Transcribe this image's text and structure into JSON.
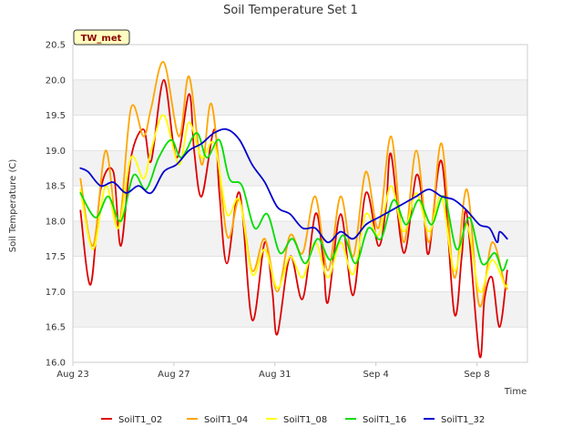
{
  "chart_data": {
    "type": "line",
    "title": "Soil Temperature Set 1",
    "xlabel": "Time",
    "ylabel": "Soil Temperature (C)",
    "tag_label": "TW_met",
    "x_start": "Aug 23",
    "x_unit": "days since Aug 23",
    "xlim": [
      0,
      18
    ],
    "ylim": [
      16.0,
      20.5
    ],
    "x_ticks": [
      {
        "x": 0,
        "label": "Aug 23"
      },
      {
        "x": 4,
        "label": "Aug 27"
      },
      {
        "x": 8,
        "label": "Aug 31"
      },
      {
        "x": 12,
        "label": "Sep 4"
      },
      {
        "x": 16,
        "label": "Sep 8"
      }
    ],
    "y_ticks": [
      {
        "y": 16.0,
        "label": "16.0"
      },
      {
        "y": 16.5,
        "label": "16.5"
      },
      {
        "y": 17.0,
        "label": "17.0"
      },
      {
        "y": 17.5,
        "label": "17.5"
      },
      {
        "y": 18.0,
        "label": "18.0"
      },
      {
        "y": 18.5,
        "label": "18.5"
      },
      {
        "y": 19.0,
        "label": "19.0"
      },
      {
        "y": 19.5,
        "label": "19.5"
      },
      {
        "y": 20.0,
        "label": "20.0"
      },
      {
        "y": 20.5,
        "label": "20.5"
      }
    ],
    "grid": true,
    "legend_position": "bottom",
    "series": [
      {
        "name": "SoilT1_02",
        "color": "#dd0000",
        "x": [
          0.3,
          0.7,
          1.1,
          1.6,
          1.9,
          2.3,
          2.8,
          3.1,
          3.6,
          4.1,
          4.6,
          4.8,
          5.1,
          5.6,
          5.8,
          6.1,
          6.6,
          7.1,
          7.6,
          7.9,
          8.1,
          8.6,
          9.1,
          9.6,
          9.9,
          10.1,
          10.6,
          11.1,
          11.6,
          12.1,
          12.4,
          12.6,
          13.1,
          13.6,
          13.9,
          14.1,
          14.6,
          15.1,
          15.4,
          15.6,
          16.1,
          16.3,
          16.6,
          16.9,
          17.2
        ],
        "y": [
          18.15,
          17.1,
          18.45,
          18.7,
          17.65,
          18.9,
          19.3,
          18.85,
          20.0,
          18.9,
          19.8,
          19.0,
          18.35,
          19.3,
          18.4,
          17.4,
          18.4,
          16.6,
          17.7,
          17.0,
          16.4,
          17.5,
          16.9,
          18.1,
          17.5,
          16.85,
          18.1,
          16.95,
          18.4,
          17.65,
          18.2,
          18.95,
          17.55,
          18.65,
          18.1,
          17.55,
          18.85,
          16.7,
          17.5,
          18.1,
          16.1,
          16.9,
          17.2,
          16.5,
          17.3
        ]
      },
      {
        "name": "SoilT1_04",
        "color": "#ffa500",
        "x": [
          0.3,
          0.8,
          1.3,
          1.8,
          2.3,
          2.8,
          3.1,
          3.6,
          4.2,
          4.6,
          5.1,
          5.5,
          6.1,
          6.6,
          7.1,
          7.6,
          8.1,
          8.6,
          9.1,
          9.6,
          10.1,
          10.6,
          11.1,
          11.6,
          12.1,
          12.6,
          13.1,
          13.6,
          14.1,
          14.6,
          15.1,
          15.6,
          16.1,
          16.6,
          17.1,
          17.2
        ],
        "y": [
          18.6,
          17.65,
          19.0,
          17.9,
          19.6,
          19.2,
          19.6,
          20.25,
          19.2,
          20.05,
          18.8,
          19.65,
          17.8,
          18.3,
          17.3,
          17.75,
          17.0,
          17.8,
          17.55,
          18.35,
          17.3,
          18.35,
          17.5,
          18.7,
          17.9,
          19.2,
          17.7,
          19.0,
          17.7,
          19.1,
          17.2,
          18.45,
          16.8,
          17.7,
          17.1,
          17.05
        ]
      },
      {
        "name": "SoilT1_08",
        "color": "#ffff00",
        "x": [
          0.3,
          0.8,
          1.3,
          1.8,
          2.3,
          2.8,
          3.1,
          3.6,
          4.2,
          4.6,
          5.1,
          5.6,
          6.1,
          6.6,
          7.1,
          7.6,
          8.1,
          8.6,
          9.1,
          9.6,
          10.1,
          10.6,
          11.1,
          11.6,
          12.1,
          12.6,
          13.1,
          13.6,
          14.1,
          14.6,
          15.1,
          15.6,
          16.1,
          16.6,
          17.1,
          17.2
        ],
        "y": [
          18.45,
          17.6,
          18.5,
          17.9,
          18.9,
          18.6,
          19.0,
          19.5,
          18.8,
          19.4,
          18.9,
          19.1,
          18.1,
          18.3,
          17.25,
          17.6,
          17.05,
          17.5,
          17.2,
          17.7,
          17.2,
          17.7,
          17.25,
          18.1,
          17.8,
          18.5,
          17.85,
          18.4,
          17.85,
          18.35,
          17.3,
          17.95,
          17.0,
          17.45,
          17.1,
          17.1
        ]
      },
      {
        "name": "SoilT1_16",
        "color": "#00dd00",
        "x": [
          0.3,
          0.9,
          1.4,
          1.9,
          2.4,
          2.9,
          3.4,
          3.9,
          4.3,
          4.9,
          5.3,
          5.8,
          6.2,
          6.7,
          7.2,
          7.7,
          8.2,
          8.7,
          9.2,
          9.7,
          10.2,
          10.7,
          11.2,
          11.7,
          12.2,
          12.7,
          13.2,
          13.7,
          14.2,
          14.7,
          15.2,
          15.7,
          16.2,
          16.7,
          17.0,
          17.2
        ],
        "y": [
          18.4,
          18.05,
          18.35,
          18.0,
          18.65,
          18.45,
          18.9,
          19.15,
          18.9,
          19.25,
          18.9,
          19.15,
          18.6,
          18.5,
          17.9,
          18.1,
          17.55,
          17.75,
          17.4,
          17.75,
          17.45,
          17.8,
          17.4,
          17.9,
          17.75,
          18.3,
          17.95,
          18.3,
          17.95,
          18.35,
          17.6,
          18.05,
          17.4,
          17.55,
          17.3,
          17.45
        ]
      },
      {
        "name": "SoilT1_32",
        "color": "#0000cc",
        "x": [
          0.3,
          0.6,
          1.1,
          1.6,
          2.1,
          2.6,
          3.1,
          3.6,
          4.1,
          4.6,
          5.1,
          5.6,
          6.1,
          6.6,
          7.1,
          7.6,
          8.1,
          8.6,
          9.1,
          9.6,
          10.1,
          10.6,
          11.1,
          11.6,
          12.1,
          12.6,
          13.1,
          13.6,
          14.1,
          14.6,
          15.1,
          15.6,
          16.1,
          16.5,
          16.8,
          16.9,
          17.2
        ],
        "y": [
          18.75,
          18.7,
          18.5,
          18.55,
          18.4,
          18.5,
          18.4,
          18.7,
          18.8,
          19.0,
          19.1,
          19.25,
          19.3,
          19.15,
          18.8,
          18.55,
          18.2,
          18.1,
          17.9,
          17.9,
          17.7,
          17.85,
          17.75,
          17.95,
          18.05,
          18.15,
          18.25,
          18.35,
          18.45,
          18.35,
          18.3,
          18.15,
          17.95,
          17.9,
          17.7,
          17.85,
          17.75
        ]
      }
    ]
  }
}
